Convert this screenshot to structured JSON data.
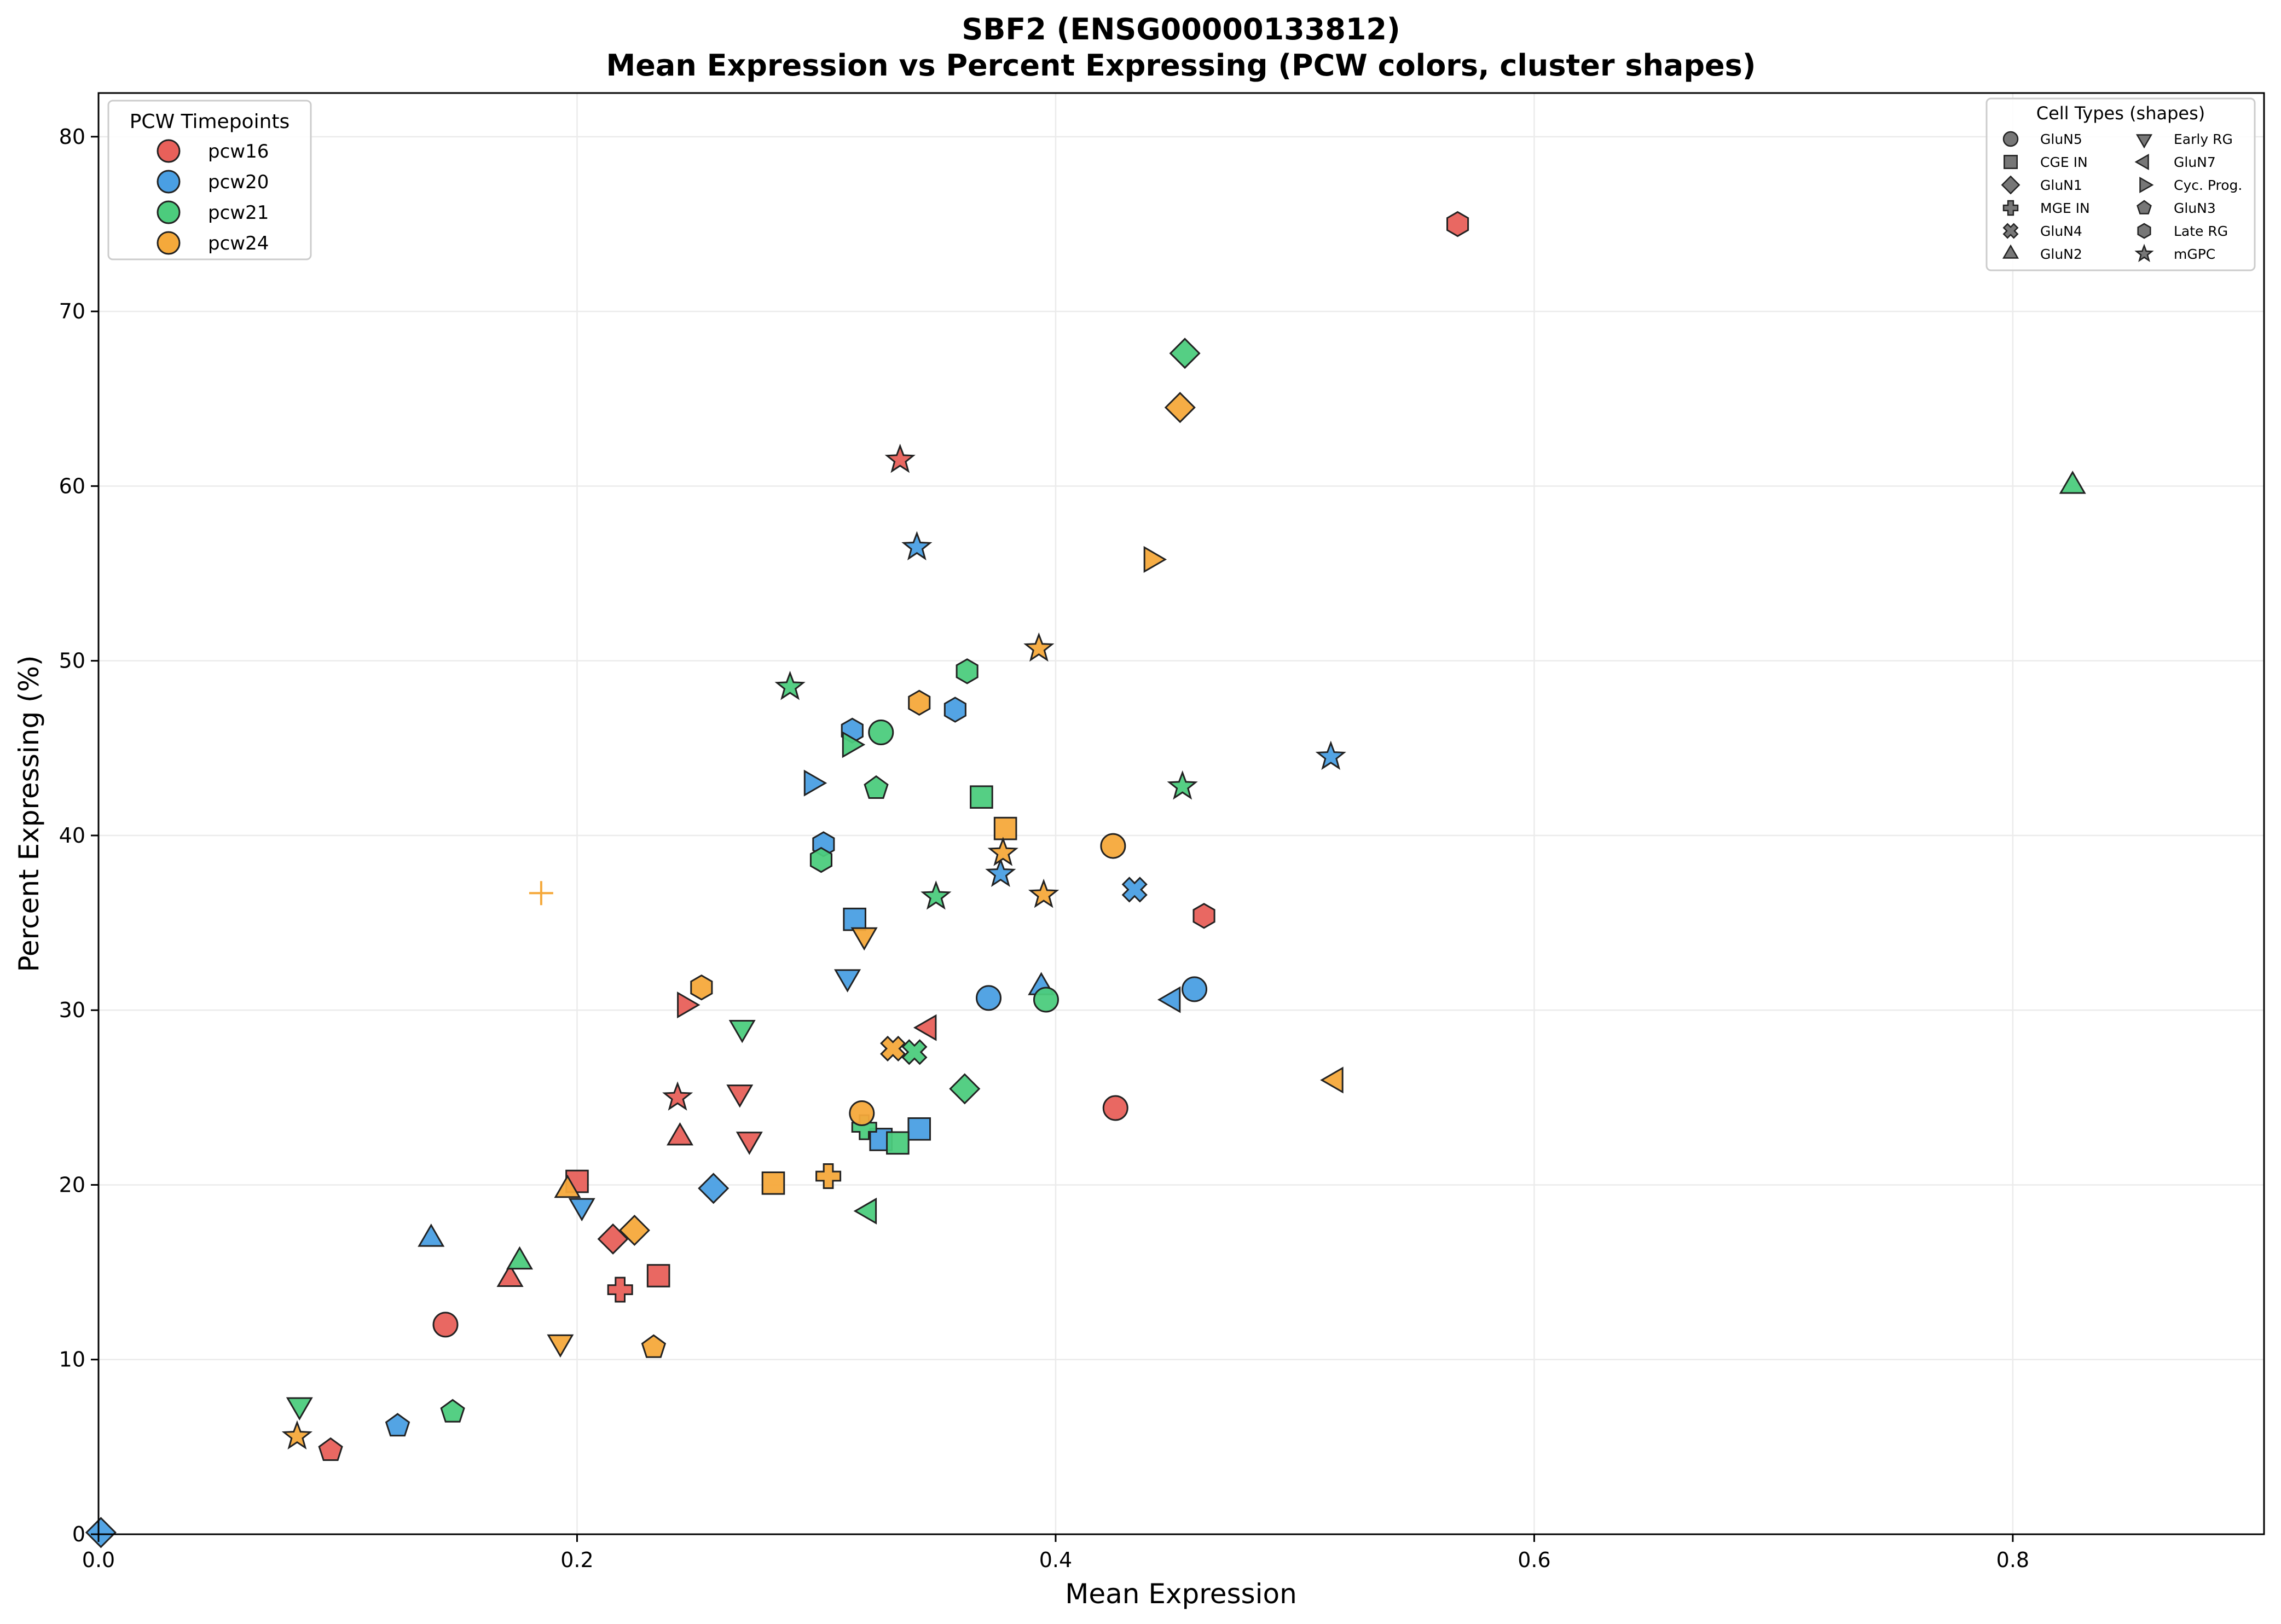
{
  "chart_data": {
    "type": "scatter",
    "title_line1": "SBF2 (ENSG00000133812)",
    "title_line2": "Mean Expression vs Percent Expressing (PCW colors, cluster shapes)",
    "xlabel": "Mean Expression",
    "ylabel": "Percent Expressing (%)",
    "xlim": [
      0,
      0.905
    ],
    "ylim": [
      0,
      82.5
    ],
    "xticks": [
      0.0,
      0.2,
      0.4,
      0.6,
      0.8
    ],
    "xtick_labels": [
      "0.0",
      "0.2",
      "0.4",
      "0.6",
      "0.8"
    ],
    "yticks": [
      0,
      10,
      20,
      30,
      40,
      50,
      60,
      70,
      80
    ],
    "ytick_labels": [
      "0",
      "10",
      "20",
      "30",
      "40",
      "50",
      "60",
      "70",
      "80"
    ],
    "grid": true,
    "pcw_legend": {
      "title": "PCW Timepoints",
      "placement": "top-left",
      "entries": [
        {
          "label": "pcw16",
          "color": "#e8605a"
        },
        {
          "label": "pcw20",
          "color": "#4a9fe3"
        },
        {
          "label": "pcw21",
          "color": "#4ccc7d"
        },
        {
          "label": "pcw24",
          "color": "#f5a93b"
        }
      ]
    },
    "shape_legend": {
      "title": "Cell Types (shapes)",
      "placement": "top-right",
      "entries": [
        {
          "label": "GluN5",
          "shape": "circle"
        },
        {
          "label": "CGE IN",
          "shape": "square"
        },
        {
          "label": "GluN1",
          "shape": "diamond"
        },
        {
          "label": "MGE IN",
          "shape": "plus"
        },
        {
          "label": "GluN4",
          "shape": "x"
        },
        {
          "label": "GluN2",
          "shape": "triangle-up"
        },
        {
          "label": "Early RG",
          "shape": "triangle-down"
        },
        {
          "label": "GluN7",
          "shape": "triangle-left"
        },
        {
          "label": "Cyc. Prog.",
          "shape": "triangle-right"
        },
        {
          "label": "GluN3",
          "shape": "pentagon"
        },
        {
          "label": "Late RG",
          "shape": "hexagon"
        },
        {
          "label": "mGPC",
          "shape": "star"
        }
      ]
    },
    "series": [
      {
        "name": "pcw16",
        "color": "#e8605a",
        "points": [
          {
            "cluster": "Late RG",
            "x": 0.568,
            "y": 75.0
          },
          {
            "cluster": "mGPC",
            "x": 0.335,
            "y": 61.5
          },
          {
            "cluster": "Late RG",
            "x": 0.462,
            "y": 35.4
          },
          {
            "cluster": "Cyc. Prog.",
            "x": 0.245,
            "y": 30.3
          },
          {
            "cluster": "GluN7",
            "x": 0.347,
            "y": 29.0
          },
          {
            "cluster": "mGPC",
            "x": 0.242,
            "y": 25.0
          },
          {
            "cluster": "Early RG",
            "x": 0.268,
            "y": 25.3
          },
          {
            "cluster": "GluN5",
            "x": 0.425,
            "y": 24.4
          },
          {
            "cluster": "GluN2",
            "x": 0.243,
            "y": 22.7
          },
          {
            "cluster": "Early RG",
            "x": 0.272,
            "y": 22.6
          },
          {
            "cluster": "CGE IN",
            "x": 0.2,
            "y": 20.2
          },
          {
            "cluster": "GluN1",
            "x": 0.215,
            "y": 16.9
          },
          {
            "cluster": "CGE IN",
            "x": 0.234,
            "y": 14.8
          },
          {
            "cluster": "GluN2",
            "x": 0.172,
            "y": 14.6
          },
          {
            "cluster": "MGE IN",
            "x": 0.218,
            "y": 14.0
          },
          {
            "cluster": "GluN5",
            "x": 0.145,
            "y": 12.0
          },
          {
            "cluster": "GluN3",
            "x": 0.097,
            "y": 4.8
          }
        ]
      },
      {
        "name": "pcw20",
        "color": "#4a9fe3",
        "points": [
          {
            "cluster": "mGPC",
            "x": 0.342,
            "y": 56.5
          },
          {
            "cluster": "Late RG",
            "x": 0.358,
            "y": 47.2
          },
          {
            "cluster": "Late RG",
            "x": 0.315,
            "y": 46.0
          },
          {
            "cluster": "mGPC",
            "x": 0.515,
            "y": 44.5
          },
          {
            "cluster": "Cyc. Prog.",
            "x": 0.298,
            "y": 43.0
          },
          {
            "cluster": "Late RG",
            "x": 0.303,
            "y": 39.5
          },
          {
            "cluster": "mGPC",
            "x": 0.377,
            "y": 37.8
          },
          {
            "cluster": "GluN4",
            "x": 0.433,
            "y": 36.9
          },
          {
            "cluster": "CGE IN",
            "x": 0.316,
            "y": 35.2
          },
          {
            "cluster": "Early RG",
            "x": 0.313,
            "y": 31.9
          },
          {
            "cluster": "GluN2",
            "x": 0.394,
            "y": 31.3
          },
          {
            "cluster": "GluN5",
            "x": 0.458,
            "y": 31.2
          },
          {
            "cluster": "GluN5",
            "x": 0.372,
            "y": 30.7
          },
          {
            "cluster": "GluN7",
            "x": 0.449,
            "y": 30.6
          },
          {
            "cluster": "CGE IN",
            "x": 0.343,
            "y": 23.2
          },
          {
            "cluster": "CGE IN",
            "x": 0.327,
            "y": 22.6
          },
          {
            "cluster": "GluN1",
            "x": 0.257,
            "y": 19.8
          },
          {
            "cluster": "Early RG",
            "x": 0.202,
            "y": 18.8
          },
          {
            "cluster": "GluN2",
            "x": 0.139,
            "y": 16.9
          },
          {
            "cluster": "GluN3",
            "x": 0.125,
            "y": 6.2
          },
          {
            "cluster": "GluN1",
            "x": 0.001,
            "y": 0.1
          }
        ]
      },
      {
        "name": "pcw21",
        "color": "#4ccc7d",
        "points": [
          {
            "cluster": "GluN1",
            "x": 0.454,
            "y": 67.6
          },
          {
            "cluster": "GluN2",
            "x": 0.825,
            "y": 60.0
          },
          {
            "cluster": "Late RG",
            "x": 0.363,
            "y": 49.4
          },
          {
            "cluster": "mGPC",
            "x": 0.289,
            "y": 48.5
          },
          {
            "cluster": "GluN5",
            "x": 0.327,
            "y": 45.9
          },
          {
            "cluster": "Cyc. Prog.",
            "x": 0.314,
            "y": 45.2
          },
          {
            "cluster": "mGPC",
            "x": 0.453,
            "y": 42.8
          },
          {
            "cluster": "GluN3",
            "x": 0.325,
            "y": 42.7
          },
          {
            "cluster": "CGE IN",
            "x": 0.369,
            "y": 42.2
          },
          {
            "cluster": "Late RG",
            "x": 0.302,
            "y": 38.6
          },
          {
            "cluster": "mGPC",
            "x": 0.35,
            "y": 36.5
          },
          {
            "cluster": "GluN5",
            "x": 0.396,
            "y": 30.6
          },
          {
            "cluster": "Early RG",
            "x": 0.269,
            "y": 29.0
          },
          {
            "cluster": "GluN4",
            "x": 0.341,
            "y": 27.6
          },
          {
            "cluster": "GluN1",
            "x": 0.362,
            "y": 25.5
          },
          {
            "cluster": "MGE IN",
            "x": 0.32,
            "y": 23.3
          },
          {
            "cluster": "CGE IN",
            "x": 0.334,
            "y": 22.4
          },
          {
            "cluster": "GluN7",
            "x": 0.322,
            "y": 18.5
          },
          {
            "cluster": "GluN2",
            "x": 0.176,
            "y": 15.6
          },
          {
            "cluster": "Early RG",
            "x": 0.084,
            "y": 7.4
          },
          {
            "cluster": "GluN3",
            "x": 0.148,
            "y": 7.0
          }
        ]
      },
      {
        "name": "pcw24",
        "color": "#f5a93b",
        "points": [
          {
            "cluster": "GluN1",
            "x": 0.452,
            "y": 64.5
          },
          {
            "cluster": "Cyc. Prog.",
            "x": 0.44,
            "y": 55.8
          },
          {
            "cluster": "mGPC",
            "x": 0.393,
            "y": 50.7
          },
          {
            "cluster": "Late RG",
            "x": 0.343,
            "y": 47.6
          },
          {
            "cluster": "CGE IN",
            "x": 0.379,
            "y": 40.4
          },
          {
            "cluster": "GluN5",
            "x": 0.424,
            "y": 39.4
          },
          {
            "cluster": "mGPC",
            "x": 0.378,
            "y": 39.0
          },
          {
            "cluster": "MGE IN",
            "x": 0.185,
            "y": 36.7,
            "style": "thin"
          },
          {
            "cluster": "mGPC",
            "x": 0.395,
            "y": 36.6
          },
          {
            "cluster": "Early RG",
            "x": 0.32,
            "y": 34.3
          },
          {
            "cluster": "Late RG",
            "x": 0.252,
            "y": 31.3
          },
          {
            "cluster": "GluN4",
            "x": 0.332,
            "y": 27.8
          },
          {
            "cluster": "GluN7",
            "x": 0.517,
            "y": 26.0
          },
          {
            "cluster": "GluN5",
            "x": 0.319,
            "y": 24.1
          },
          {
            "cluster": "MGE IN",
            "x": 0.305,
            "y": 20.5
          },
          {
            "cluster": "CGE IN",
            "x": 0.282,
            "y": 20.1
          },
          {
            "cluster": "GluN2",
            "x": 0.196,
            "y": 19.7
          },
          {
            "cluster": "GluN1",
            "x": 0.224,
            "y": 17.4
          },
          {
            "cluster": "Early RG",
            "x": 0.193,
            "y": 11.0
          },
          {
            "cluster": "GluN3",
            "x": 0.232,
            "y": 10.7
          },
          {
            "cluster": "mGPC",
            "x": 0.083,
            "y": 5.6
          }
        ]
      }
    ]
  }
}
